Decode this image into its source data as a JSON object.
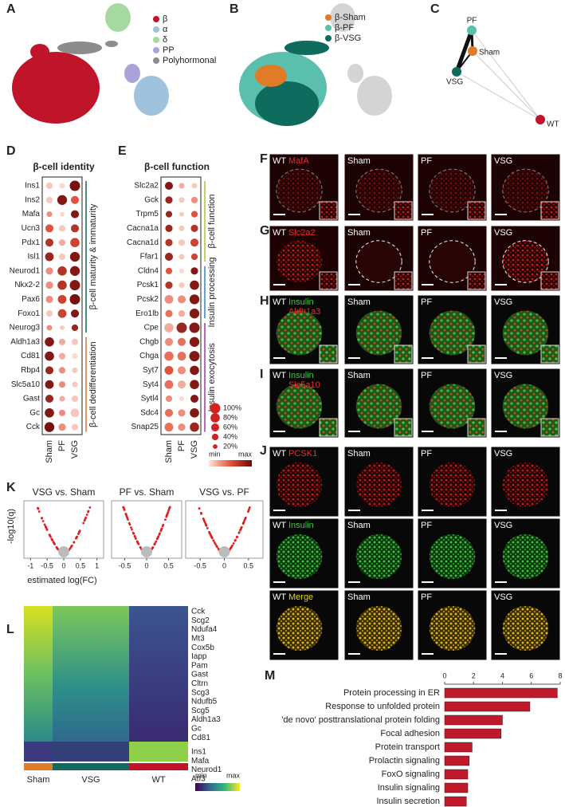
{
  "panel_labels": [
    "A",
    "B",
    "C",
    "D",
    "E",
    "F",
    "G",
    "H",
    "I",
    "J",
    "K",
    "L",
    "M"
  ],
  "umap_cell_types": {
    "legend": [
      {
        "name": "β",
        "color": "#c0142b"
      },
      {
        "name": "α",
        "color": "#9fc3dc"
      },
      {
        "name": "δ",
        "color": "#a6d9a0"
      },
      {
        "name": "PP",
        "color": "#a9a3d9"
      },
      {
        "name": "Polyhormonal",
        "color": "#8c8c8c"
      }
    ]
  },
  "umap_groups": {
    "legend": [
      {
        "name": "β-Sham",
        "color": "#e07b28"
      },
      {
        "name": "β-PF",
        "color": "#5bbfae"
      },
      {
        "name": "β-VSG",
        "color": "#0f6b5e"
      }
    ]
  },
  "network": {
    "nodes": [
      "PF",
      "Sham",
      "VSG",
      "WT"
    ]
  },
  "dotplot_identity": {
    "title": "β-cell identity",
    "genes": [
      "Ins1",
      "Ins2",
      "Mafa",
      "Ucn3",
      "Pdx1",
      "Isl1",
      "Neurod1",
      "Nkx2-2",
      "Pax6",
      "Foxo1",
      "Neurog3",
      "Aldh1a3",
      "Cd81",
      "Rbp4",
      "Slc5a10",
      "Gast",
      "Gc",
      "Cck"
    ],
    "groups": [
      "Sham",
      "PF",
      "VSG"
    ],
    "pct": [
      [
        40,
        30,
        100
      ],
      [
        40,
        90,
        60
      ],
      [
        30,
        20,
        60
      ],
      [
        60,
        40,
        60
      ],
      [
        60,
        40,
        80
      ],
      [
        70,
        40,
        90
      ],
      [
        50,
        80,
        90
      ],
      [
        50,
        80,
        100
      ],
      [
        50,
        70,
        100
      ],
      [
        40,
        70,
        60
      ],
      [
        30,
        20,
        40
      ],
      [
        80,
        40,
        40
      ],
      [
        80,
        40,
        30
      ],
      [
        60,
        40,
        30
      ],
      [
        70,
        40,
        30
      ],
      [
        60,
        30,
        40
      ],
      [
        80,
        40,
        70
      ],
      [
        90,
        50,
        40
      ]
    ],
    "expr": [
      [
        0.1,
        0.05,
        0.95
      ],
      [
        0.1,
        0.9,
        0.5
      ],
      [
        0.3,
        0.05,
        0.9
      ],
      [
        0.5,
        0.1,
        0.7
      ],
      [
        0.7,
        0.2,
        0.6
      ],
      [
        0.8,
        0.1,
        0.9
      ],
      [
        0.3,
        0.7,
        0.9
      ],
      [
        0.3,
        0.7,
        0.9
      ],
      [
        0.3,
        0.6,
        0.95
      ],
      [
        0.1,
        0.6,
        0.9
      ],
      [
        0.3,
        0.1,
        0.8
      ],
      [
        0.9,
        0.2,
        0.1
      ],
      [
        0.9,
        0.2,
        0.05
      ],
      [
        0.8,
        0.3,
        0.1
      ],
      [
        0.9,
        0.3,
        0.1
      ],
      [
        0.8,
        0.2,
        0.1
      ],
      [
        0.9,
        0.3,
        0.1
      ],
      [
        0.95,
        0.3,
        0.1
      ]
    ],
    "annotations": [
      "β-cell maturity & immaturity",
      "β-cell dedifferentiation"
    ]
  },
  "dotplot_function": {
    "title": "β-cell function",
    "genes": [
      "Slc2a2",
      "Gck",
      "Trpm5",
      "Cacna1a",
      "Cacna1d",
      "Ffar1",
      "Cldn4",
      "Pcsk1",
      "Pcsk2",
      "Ero1lb",
      "Cpe",
      "Chgb",
      "Chga",
      "Syt7",
      "Syt4",
      "Sytl4",
      "Sdc4",
      "Snap25"
    ],
    "groups": [
      "Sham",
      "PF",
      "VSG"
    ],
    "pct": [
      [
        60,
        30,
        30
      ],
      [
        50,
        30,
        40
      ],
      [
        40,
        20,
        40
      ],
      [
        50,
        30,
        50
      ],
      [
        50,
        40,
        60
      ],
      [
        60,
        30,
        40
      ],
      [
        40,
        20,
        50
      ],
      [
        50,
        30,
        80
      ],
      [
        70,
        60,
        90
      ],
      [
        50,
        40,
        90
      ],
      [
        80,
        100,
        100
      ],
      [
        60,
        60,
        90
      ],
      [
        80,
        70,
        100
      ],
      [
        70,
        60,
        80
      ],
      [
        70,
        60,
        80
      ],
      [
        40,
        20,
        60
      ],
      [
        60,
        50,
        80
      ],
      [
        70,
        50,
        80
      ]
    ],
    "expr": [
      [
        0.9,
        0.2,
        0.1
      ],
      [
        0.8,
        0.1,
        0.3
      ],
      [
        0.8,
        0.1,
        0.5
      ],
      [
        0.8,
        0.1,
        0.7
      ],
      [
        0.7,
        0.1,
        0.6
      ],
      [
        0.8,
        0.1,
        0.6
      ],
      [
        0.5,
        0.05,
        0.9
      ],
      [
        0.7,
        0.1,
        0.9
      ],
      [
        0.3,
        0.3,
        0.9
      ],
      [
        0.4,
        0.2,
        0.9
      ],
      [
        0.2,
        0.8,
        0.9
      ],
      [
        0.3,
        0.4,
        0.9
      ],
      [
        0.4,
        0.4,
        0.9
      ],
      [
        0.5,
        0.3,
        0.9
      ],
      [
        0.4,
        0.2,
        0.9
      ],
      [
        0.3,
        0.05,
        0.9
      ],
      [
        0.4,
        0.3,
        0.9
      ],
      [
        0.4,
        0.3,
        0.8
      ]
    ],
    "annotations": [
      "β-cell function",
      "Insulin processing",
      "Insulin exocytosis"
    ]
  },
  "dot_size_legend": [
    {
      "value": 100,
      "label": "100%"
    },
    {
      "value": 80,
      "label": "80%"
    },
    {
      "value": 60,
      "label": "60%"
    },
    {
      "value": 40,
      "label": "40%"
    },
    {
      "value": 20,
      "label": "20%"
    }
  ],
  "expr_colorbar": {
    "min": "min",
    "max": "max"
  },
  "micrographs": {
    "groups": [
      "WT",
      "Sham",
      "PF",
      "VSG"
    ],
    "rows": [
      {
        "channels": [
          {
            "text": "MafA",
            "color": "#e53030"
          }
        ]
      },
      {
        "channels": [
          {
            "text": "Slc2a2",
            "color": "#e53030"
          }
        ]
      },
      {
        "channels": [
          {
            "text": "Insulin",
            "color": "#3ec63e"
          },
          {
            "text": "Aldh1a3",
            "color": "#e53030"
          }
        ]
      },
      {
        "channels": [
          {
            "text": "Insulin",
            "color": "#3ec63e"
          },
          {
            "text": "Slc5a10",
            "color": "#e53030"
          }
        ]
      },
      {
        "channels": [
          {
            "text": "PCSK1",
            "color": "#e53030"
          }
        ]
      },
      {
        "channels": [
          {
            "text": "Insulin",
            "color": "#3ec63e"
          }
        ]
      },
      {
        "channels": [
          {
            "text": "Merge",
            "color": "#e8d020"
          }
        ]
      }
    ]
  },
  "volcano": {
    "ylabel": "-log10(q)",
    "xlabel": "estimated log(FC)",
    "plots": [
      {
        "title": "VSG vs. Sham",
        "xlim": [
          -1.2,
          1.2
        ],
        "xticks": [
          -1,
          -0.5,
          0,
          0.5,
          1
        ]
      },
      {
        "title": "PF vs. Sham",
        "xlim": [
          -0.8,
          0.8
        ],
        "xticks": [
          -0.5,
          0,
          0.5
        ]
      },
      {
        "title": "VSG vs. PF",
        "xlim": [
          -0.8,
          0.8
        ],
        "xticks": [
          -0.5,
          0,
          0.5
        ]
      }
    ]
  },
  "heatmap": {
    "genes_top": [
      "Cck",
      "Scg2",
      "Ndufa4",
      "Mt3",
      "Cox5b",
      "Iapp",
      "Pam",
      "Gast",
      "Cltrn",
      "Scg3",
      "Ndufb5",
      "Scg5",
      "Aldh1a3",
      "Gc",
      "Cd81"
    ],
    "genes_bottom": [
      "Ins1",
      "Mafa",
      "Neurod1",
      "Atf3"
    ],
    "groups": [
      {
        "name": "Sham",
        "color": "#e07b28"
      },
      {
        "name": "VSG",
        "color": "#0f6b5e"
      },
      {
        "name": "WT",
        "color": "#c0142b"
      }
    ],
    "colorbar": {
      "min": "min",
      "max": "max"
    }
  },
  "enrichment": {
    "type": "bar",
    "categories": [
      "Protein processing in ER",
      "Response to unfolded protein",
      "'de novo' posttranslational protein folding",
      "Focal adhesion",
      "Protein transport",
      "Prolactin signaling",
      "FoxO signaling",
      "Insulin signaling",
      "Insulin secretion"
    ],
    "values": [
      7.8,
      5.9,
      4.0,
      3.9,
      1.9,
      1.7,
      1.6,
      1.6,
      1.5
    ],
    "color": "#c0192c",
    "xlim": [
      0,
      8
    ],
    "xticks": [
      0,
      2,
      4,
      6,
      8
    ]
  }
}
